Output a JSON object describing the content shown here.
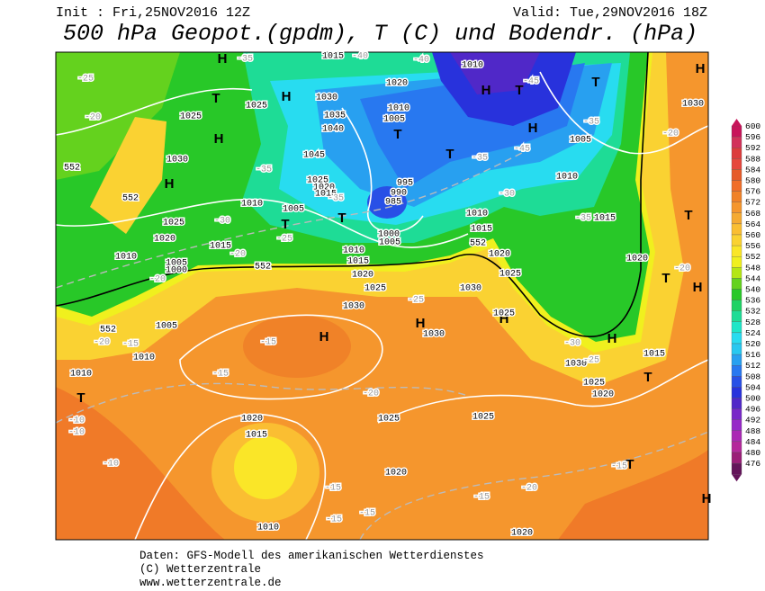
{
  "header": {
    "init": "Init : Fri,25NOV2016 12Z",
    "valid": "Valid: Tue,29NOV2016 18Z",
    "title": "500 hPa Geopot.(gpdm), T (C) und Bodendr. (hPa)"
  },
  "legend": {
    "levels": [
      600,
      596,
      592,
      588,
      584,
      580,
      576,
      572,
      568,
      564,
      560,
      556,
      552,
      548,
      544,
      540,
      536,
      532,
      528,
      524,
      520,
      516,
      512,
      508,
      504,
      500,
      496,
      492,
      488,
      484,
      480,
      476
    ],
    "colors": [
      "#c8145a",
      "#d2325a",
      "#dc3c3c",
      "#e6463c",
      "#e65a28",
      "#f06e28",
      "#f08228",
      "#f5962d",
      "#f5aa32",
      "#fabe32",
      "#fad232",
      "#fae628",
      "#f0f01e",
      "#b4e614",
      "#64d21e",
      "#28c828",
      "#1ed264",
      "#1edc96",
      "#1ee6c8",
      "#28dcf0",
      "#28c8f0",
      "#28a0f0",
      "#2878f0",
      "#2850e6",
      "#2832dc",
      "#5028c8",
      "#7828c8",
      "#9628c8",
      "#aa28b4",
      "#b4289b",
      "#9b1e78",
      "#64145a"
    ]
  },
  "map_labels": [
    "H",
    "T",
    "H",
    "H",
    "T",
    "H",
    "H",
    "T",
    "T",
    "H",
    "T",
    "H",
    "T",
    "T",
    "T",
    "H",
    "T",
    "H",
    "H",
    "H",
    "H",
    "T",
    "T",
    "T",
    "H",
    "1015",
    "1010",
    "1020",
    "1030",
    "1035",
    "1040",
    "1045",
    "1025",
    "1020",
    "1015",
    "1005",
    "1010",
    "995",
    "990",
    "985",
    "1000",
    "1005",
    "1010",
    "1005",
    "1025",
    "1020",
    "1015",
    "1010",
    "1005",
    "1000",
    "1010",
    "1015",
    "1020",
    "1025",
    "1030",
    "1030",
    "1025",
    "1020",
    "1015",
    "1010",
    "1030",
    "1005",
    "1010",
    "1015",
    "1020",
    "1015",
    "1030",
    "1025",
    "1020",
    "1030",
    "1025",
    "1005",
    "1010",
    "1010",
    "1030",
    "1025",
    "1025",
    "1020",
    "1015",
    "1025",
    "1025",
    "1020",
    "1010",
    "1020",
    "-25",
    "-20",
    "-35",
    "-40",
    "-40",
    "-45",
    "-35",
    "-45",
    "-35",
    "-30",
    "-35",
    "-20",
    "-35",
    "-35",
    "-30",
    "-25",
    "-20",
    "-20",
    "-25",
    "-20",
    "-15",
    "-15",
    "-15",
    "-20",
    "-10",
    "-10",
    "-10",
    "-15",
    "-15",
    "-15",
    "-15",
    "-20",
    "-15",
    "-30",
    "-25",
    "-20",
    "552",
    "552",
    "552",
    "552",
    "552"
  ],
  "footer": [
    "Daten: GFS-Modell des amerikanischen Wetterdienstes",
    "(C) Wetterzentrale",
    "www.wetterzentrale.de"
  ]
}
